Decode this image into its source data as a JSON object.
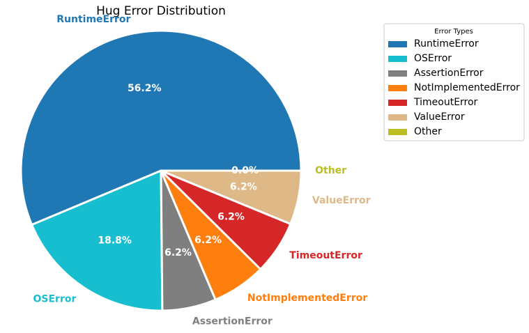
{
  "chart_data": {
    "type": "pie",
    "title": "Hug Error Distribution",
    "legend": {
      "title": "Error Types",
      "placement": "top-right, outside plot"
    },
    "slices": [
      {
        "label": "RuntimeError",
        "value": 56.2,
        "pct_label": "56.2%",
        "color": "#1f77b4"
      },
      {
        "label": "OSError",
        "value": 18.8,
        "pct_label": "18.8%",
        "color": "#17becf"
      },
      {
        "label": "AssertionError",
        "value": 6.2,
        "pct_label": "6.2%",
        "color": "#7f7f7f"
      },
      {
        "label": "NotImplementedError",
        "value": 6.2,
        "pct_label": "6.2%",
        "color": "#ff7f0e"
      },
      {
        "label": "TimeoutError",
        "value": 6.2,
        "pct_label": "6.2%",
        "color": "#d62728"
      },
      {
        "label": "ValueError",
        "value": 6.2,
        "pct_label": "6.2%",
        "color": "#deb887"
      },
      {
        "label": "Other",
        "value": 0.0,
        "pct_label": "0.0%",
        "color": "#bcbd22"
      }
    ]
  }
}
